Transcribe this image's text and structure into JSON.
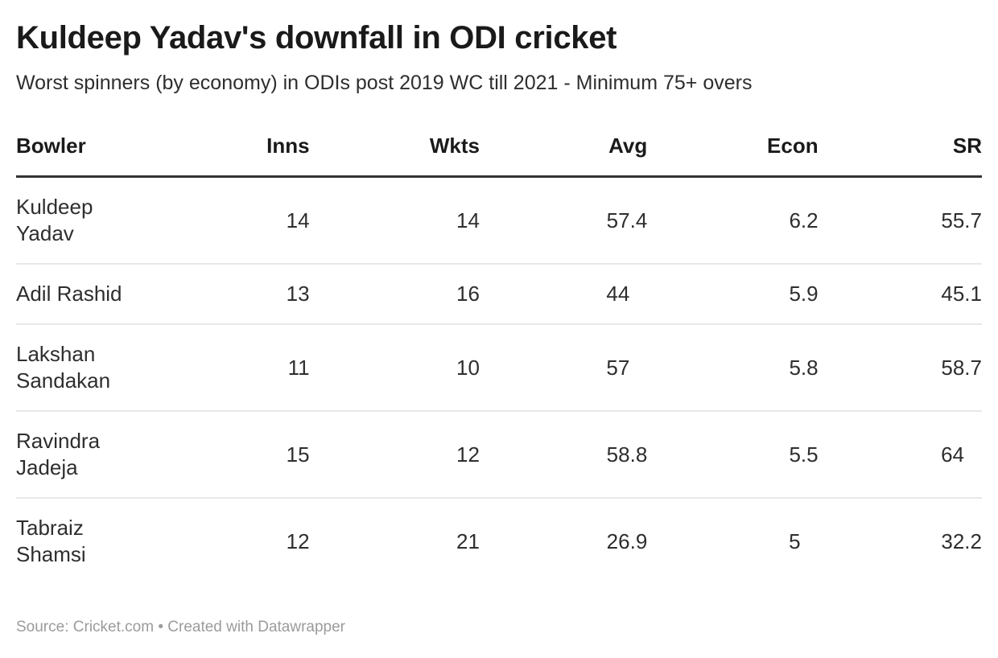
{
  "chart_data": {
    "type": "table",
    "title": "Kuldeep Yadav's downfall in ODI cricket",
    "subtitle": "Worst spinners (by economy) in ODIs post 2019 WC till 2021 - Minimum 75+ overs",
    "columns": [
      {
        "key": "bowler",
        "label": "Bowler",
        "numeric": false,
        "pad_integers": false
      },
      {
        "key": "inns",
        "label": "Inns",
        "numeric": true,
        "pad_integers": false
      },
      {
        "key": "wkts",
        "label": "Wkts",
        "numeric": true,
        "pad_integers": false
      },
      {
        "key": "avg",
        "label": "Avg",
        "numeric": true,
        "pad_integers": true
      },
      {
        "key": "econ",
        "label": "Econ",
        "numeric": true,
        "pad_integers": true
      },
      {
        "key": "sr",
        "label": "SR",
        "numeric": true,
        "pad_integers": true
      }
    ],
    "rows": [
      {
        "bowler": "Kuldeep Yadav",
        "inns": "14",
        "wkts": "14",
        "avg": "57.4",
        "econ": "6.2",
        "sr": "55.7"
      },
      {
        "bowler": "Adil Rashid",
        "inns": "13",
        "wkts": "16",
        "avg": "44",
        "econ": "5.9",
        "sr": "45.1"
      },
      {
        "bowler": "Lakshan Sandakan",
        "inns": "11",
        "wkts": "10",
        "avg": "57",
        "econ": "5.8",
        "sr": "58.7"
      },
      {
        "bowler": "Ravindra Jadeja",
        "inns": "15",
        "wkts": "12",
        "avg": "58.8",
        "econ": "5.5",
        "sr": "64"
      },
      {
        "bowler": "Tabraiz Shamsi",
        "inns": "12",
        "wkts": "21",
        "avg": "26.9",
        "econ": "5",
        "sr": "32.2"
      }
    ]
  },
  "footer": {
    "source_label": "Source:",
    "source_name": "Cricket.com",
    "separator": "•",
    "attribution": "Created with Datawrapper"
  },
  "colors": {
    "title": "#1a1a1a",
    "subtitle": "#2e2e2e",
    "header_text": "#1a1a1a",
    "body_text": "#2e2e2e",
    "header_border": "#333333",
    "row_divider": "#e8e8e8",
    "footer_text": "#9b9b9b",
    "background": "#ffffff"
  }
}
